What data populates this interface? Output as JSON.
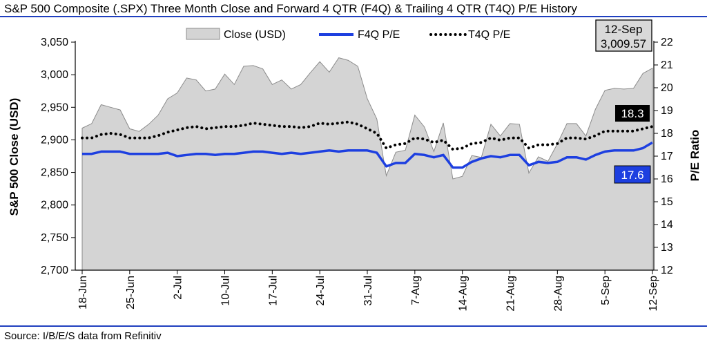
{
  "page": {
    "title": "S&P 500 Composite (.SPX) Three Month Close and Forward 4 QTR (F4Q) & Trailing 4 QTR (T4Q) P/E History",
    "source": "Source: I/B/E/S data from Refinitiv"
  },
  "colors": {
    "rule": "#1f3fbf",
    "area_fill": "#d4d4d4",
    "area_stroke": "#8c8c8c",
    "f4q_line": "#1d3fe0",
    "t4q_line": "#000000",
    "t4q_label_bg": "#000000",
    "f4q_label_bg": "#1d3fe0",
    "date_box_bg": "#d9d9d9"
  },
  "chart_data": {
    "type": "area",
    "x": [
      "18-Jun",
      "19-Jun",
      "20-Jun",
      "21-Jun",
      "22-Jun",
      "25-Jun",
      "26-Jun",
      "27-Jun",
      "28-Jun",
      "29-Jun",
      "2-Jul",
      "3-Jul",
      "5-Jul",
      "6-Jul",
      "9-Jul",
      "10-Jul",
      "11-Jul",
      "12-Jul",
      "13-Jul",
      "16-Jul",
      "17-Jul",
      "18-Jul",
      "19-Jul",
      "20-Jul",
      "23-Jul",
      "24-Jul",
      "25-Jul",
      "26-Jul",
      "27-Jul",
      "30-Jul",
      "31-Jul",
      "1-Aug",
      "2-Aug",
      "3-Aug",
      "6-Aug",
      "7-Aug",
      "8-Aug",
      "9-Aug",
      "10-Aug",
      "13-Aug",
      "14-Aug",
      "15-Aug",
      "16-Aug",
      "17-Aug",
      "20-Aug",
      "21-Aug",
      "22-Aug",
      "23-Aug",
      "24-Aug",
      "27-Aug",
      "28-Aug",
      "29-Aug",
      "30-Aug",
      "31-Aug",
      "4-Sep",
      "5-Sep",
      "6-Sep",
      "7-Sep",
      "10-Sep",
      "11-Sep",
      "12-Sep"
    ],
    "xticks": [
      "18-Jun",
      "25-Jun",
      "2-Jul",
      "10-Jul",
      "17-Jul",
      "24-Jul",
      "31-Jul",
      "7-Aug",
      "14-Aug",
      "21-Aug",
      "28-Aug",
      "5-Sep",
      "12-Sep"
    ],
    "series": [
      {
        "name": "Close (USD)",
        "axis": "left",
        "kind": "area",
        "values": [
          2918,
          2925,
          2954,
          2950,
          2946,
          2917,
          2913,
          2924,
          2938,
          2963,
          2972,
          2995,
          2992,
          2975,
          2978,
          3001,
          2985,
          3013,
          3014,
          3009,
          2985,
          2992,
          2978,
          2985,
          3003,
          3020,
          3004,
          3026,
          3022,
          3013,
          2963,
          2932,
          2845,
          2881,
          2884,
          2938,
          2920,
          2882,
          2926,
          2840,
          2844,
          2876,
          2873,
          2924,
          2906,
          2925,
          2924,
          2849,
          2874,
          2867,
          2894,
          2925,
          2925,
          2906,
          2947,
          2976,
          2979,
          2978,
          2979,
          3002,
          3010
        ]
      },
      {
        "name": "F4Q P/E",
        "axis": "right",
        "kind": "line",
        "values": [
          17.1,
          17.1,
          17.2,
          17.2,
          17.2,
          17.1,
          17.1,
          17.1,
          17.1,
          17.15,
          17.0,
          17.05,
          17.1,
          17.1,
          17.05,
          17.1,
          17.1,
          17.15,
          17.2,
          17.2,
          17.15,
          17.1,
          17.15,
          17.1,
          17.15,
          17.2,
          17.25,
          17.2,
          17.25,
          17.25,
          17.25,
          17.15,
          16.55,
          16.7,
          16.7,
          17.1,
          17.05,
          16.95,
          17.05,
          16.5,
          16.5,
          16.75,
          16.9,
          17.0,
          16.95,
          17.05,
          17.05,
          16.6,
          16.75,
          16.7,
          16.75,
          16.95,
          16.95,
          16.85,
          17.05,
          17.2,
          17.25,
          17.25,
          17.25,
          17.35,
          17.6
        ]
      },
      {
        "name": "T4Q P/E",
        "axis": "right",
        "kind": "dotted-line",
        "values": [
          17.8,
          17.8,
          17.95,
          18.0,
          17.95,
          17.8,
          17.8,
          17.8,
          17.9,
          18.05,
          18.15,
          18.25,
          18.3,
          18.2,
          18.25,
          18.3,
          18.3,
          18.35,
          18.45,
          18.4,
          18.35,
          18.3,
          18.3,
          18.25,
          18.3,
          18.45,
          18.4,
          18.45,
          18.5,
          18.4,
          18.2,
          18.0,
          17.35,
          17.5,
          17.55,
          17.8,
          17.75,
          17.6,
          17.7,
          17.3,
          17.35,
          17.55,
          17.6,
          17.8,
          17.7,
          17.8,
          17.8,
          17.35,
          17.5,
          17.5,
          17.55,
          17.8,
          17.8,
          17.75,
          17.9,
          18.1,
          18.1,
          18.1,
          18.1,
          18.2,
          18.3
        ]
      }
    ],
    "yleft": {
      "label": "S&P 500 Close (USD)",
      "range": [
        2700,
        3050
      ],
      "ticks": [
        "2,700",
        "2,750",
        "2,800",
        "2,850",
        "2,900",
        "2,950",
        "3,000",
        "3,050"
      ]
    },
    "yright": {
      "label": "P/E Ratio",
      "range": [
        12,
        22
      ],
      "ticks": [
        "12",
        "13",
        "14",
        "15",
        "16",
        "17",
        "18",
        "19",
        "20",
        "21",
        "22"
      ]
    },
    "grid": false,
    "legend_position": "top",
    "annotations": {
      "date_box": {
        "date": "12-Sep",
        "value": "3,009.57"
      },
      "t4q_last": "18.3",
      "f4q_last": "17.6"
    }
  }
}
